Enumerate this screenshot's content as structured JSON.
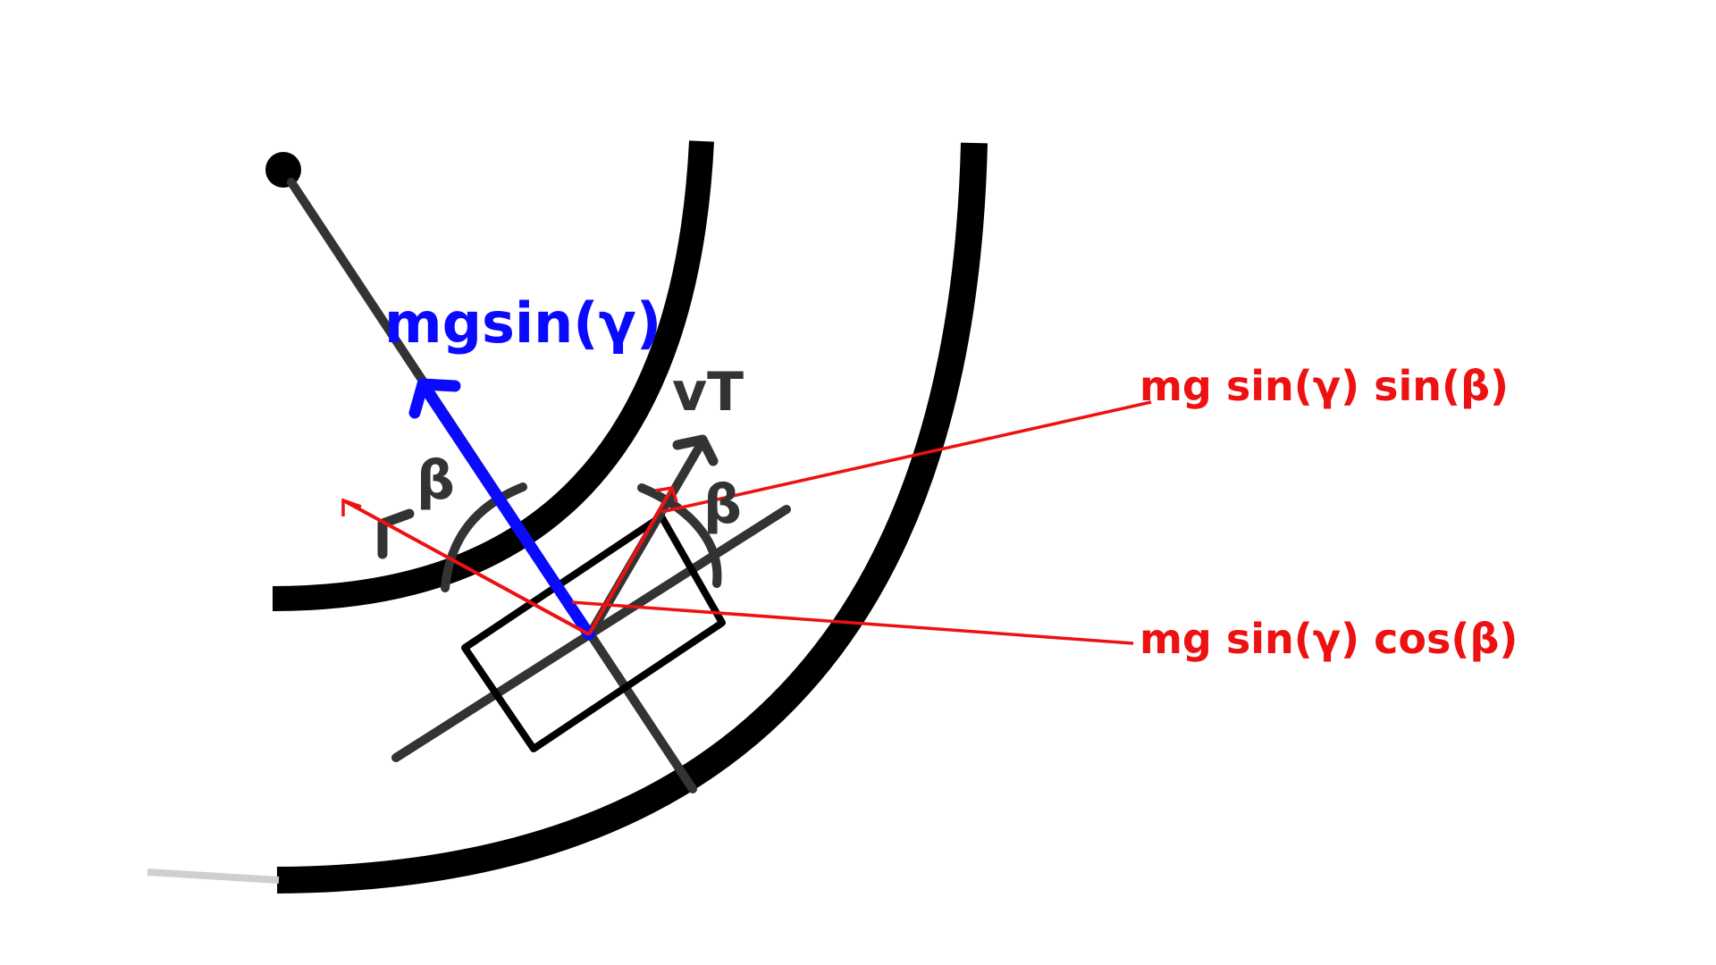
{
  "colors": {
    "track": "#000000",
    "ink": "#333333",
    "blue": "#0a0aff",
    "red": "#ee1111",
    "background": "#ffffff"
  },
  "labels": {
    "blue_force": "mgsin(γ)",
    "velocity": "vT",
    "beta_left": "β",
    "beta_right": "β",
    "red_sin": "mg sin(γ) sin(β)",
    "red_cos": "mg sin(γ) cos(β)"
  }
}
